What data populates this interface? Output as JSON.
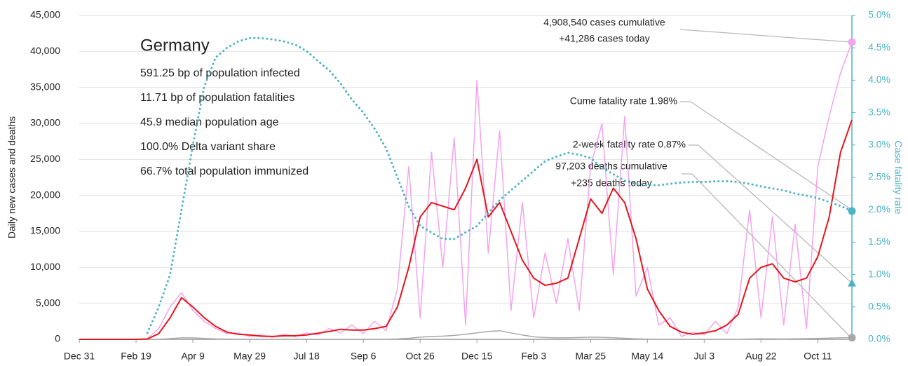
{
  "chart_data": {
    "type": "line",
    "info_title": "Germany",
    "info_lines": [
      "591.25 bp of population infected",
      "11.71 bp of population fatalities",
      "45.9 median population age",
      "100.0% Delta variant share",
      "66.7% total population immunized"
    ],
    "ylabel": "Daily new cases and deaths",
    "y2label": "Case fatality rate",
    "annotations": [
      "4,908,540 cases cumulative",
      "+41,286 cases today",
      "Cume fatality rate 1.98%",
      "2-week fatality rate 0.87%",
      "97,203 deaths cumulative",
      "+235 deaths today"
    ],
    "two_week_fatality_rate": 0.87,
    "categories": [
      "Dec 31",
      null,
      null,
      null,
      null,
      "Feb 19",
      null,
      null,
      null,
      null,
      "Apr 9",
      null,
      null,
      null,
      null,
      "May 29",
      null,
      null,
      null,
      null,
      "Jul 18",
      null,
      null,
      null,
      null,
      "Sep 6",
      null,
      null,
      null,
      null,
      "Oct 26",
      null,
      null,
      null,
      null,
      "Dec 15",
      null,
      null,
      null,
      null,
      "Feb 3",
      null,
      null,
      null,
      null,
      "Mar 25",
      null,
      null,
      null,
      null,
      "May 14",
      null,
      null,
      null,
      null,
      "Jul 3",
      null,
      null,
      null,
      null,
      "Aug 22",
      null,
      null,
      null,
      null,
      "Oct 11",
      null,
      null,
      null
    ],
    "series": [
      {
        "color": "#f4a3ee",
        "width": 1.5,
        "dotted": false,
        "values": [
          0,
          0,
          0,
          0,
          0,
          0,
          100,
          1500,
          4500,
          6500,
          4000,
          2500,
          1500,
          800,
          900,
          400,
          600,
          300,
          700,
          400,
          900,
          600,
          1500,
          900,
          2000,
          800,
          2500,
          1200,
          7000,
          24000,
          3000,
          26000,
          10000,
          28000,
          2000,
          36000,
          12000,
          29000,
          4000,
          19000,
          3000,
          12000,
          5000,
          14000,
          4000,
          24000,
          30000,
          9000,
          31000,
          6000,
          10000,
          2000,
          3000,
          400,
          1000,
          600,
          2500,
          800,
          4500,
          18000,
          3000,
          17000,
          2000,
          16000,
          1500,
          24000,
          31000,
          37000,
          41286
        ]
      },
      {
        "color": "#a8a8a8",
        "width": 1.5,
        "dotted": false,
        "values": [
          0,
          0,
          0,
          0,
          0,
          0,
          0,
          20,
          100,
          200,
          200,
          120,
          60,
          40,
          20,
          10,
          10,
          5,
          5,
          5,
          5,
          5,
          10,
          10,
          10,
          10,
          15,
          30,
          60,
          150,
          300,
          400,
          450,
          550,
          700,
          900,
          1100,
          1200,
          900,
          600,
          350,
          250,
          200,
          220,
          250,
          300,
          280,
          220,
          150,
          80,
          40,
          20,
          15,
          10,
          10,
          10,
          15,
          20,
          30,
          50,
          80,
          60,
          50,
          70,
          100,
          130,
          180,
          220,
          235
        ]
      },
      {
        "color": "#e8141c",
        "width": 2,
        "dotted": false,
        "values": [
          0,
          0,
          0,
          0,
          0,
          0,
          50,
          800,
          3000,
          5800,
          4500,
          3000,
          1800,
          1000,
          700,
          600,
          450,
          400,
          500,
          500,
          600,
          850,
          1100,
          1400,
          1300,
          1300,
          1500,
          1800,
          4500,
          10000,
          17000,
          19000,
          18500,
          18000,
          21000,
          25000,
          17000,
          19000,
          15000,
          11000,
          8500,
          7500,
          7800,
          8500,
          14000,
          19500,
          17500,
          21000,
          19000,
          14000,
          7000,
          4000,
          1800,
          1000,
          700,
          900,
          1200,
          2000,
          3500,
          8500,
          10000,
          10500,
          8500,
          8000,
          8500,
          11500,
          17000,
          26000,
          30500
        ]
      },
      {
        "color": "#4bb3c6",
        "width": 3,
        "dotted": true,
        "axis": "y2",
        "values": [
          null,
          null,
          null,
          null,
          null,
          null,
          0.1,
          0.5,
          1.0,
          2.0,
          3.0,
          3.9,
          4.35,
          4.5,
          4.6,
          4.65,
          4.65,
          4.63,
          4.6,
          4.55,
          4.45,
          4.3,
          4.15,
          3.95,
          3.7,
          3.5,
          3.25,
          2.95,
          2.5,
          2.05,
          1.75,
          1.65,
          1.55,
          1.55,
          1.65,
          1.75,
          1.95,
          2.15,
          2.3,
          2.45,
          2.6,
          2.75,
          2.82,
          2.88,
          2.85,
          2.8,
          2.65,
          2.55,
          2.45,
          2.4,
          2.38,
          2.38,
          2.4,
          2.42,
          2.43,
          2.43,
          2.44,
          2.44,
          2.43,
          2.4,
          2.36,
          2.33,
          2.3,
          2.25,
          2.22,
          2.18,
          2.12,
          2.06,
          1.98
        ]
      }
    ],
    "ylim": [
      0,
      45000
    ],
    "yticks": [
      0,
      {
        "value": 5000,
        "label": "5,000"
      },
      {
        "value": 10000,
        "label": "10,000"
      },
      {
        "value": 15000,
        "label": "15,000"
      },
      {
        "value": 20000,
        "label": "20,000"
      },
      {
        "value": 25000,
        "label": "25,000"
      },
      {
        "value": 30000,
        "label": "30,000"
      },
      {
        "value": 35000,
        "label": "35,000"
      },
      {
        "value": 40000,
        "label": "40,000"
      },
      {
        "value": 45000,
        "label": "45,000"
      }
    ],
    "y2lim": [
      0,
      5
    ],
    "y2ticks": [
      {
        "value": 0,
        "label": "0.0%"
      },
      {
        "value": 0.5,
        "label": "0.5%"
      },
      {
        "value": 1,
        "label": "1.0%"
      },
      {
        "value": 1.5,
        "label": "1.5%"
      },
      {
        "value": 2,
        "label": "2.0%"
      },
      {
        "value": 2.5,
        "label": "2.5%"
      },
      {
        "value": 3,
        "label": "3.0%"
      },
      {
        "value": 3.5,
        "label": "3.5%"
      },
      {
        "value": 4,
        "label": "4.0%"
      },
      {
        "value": 4.5,
        "label": "4.5%"
      },
      {
        "value": 5,
        "label": "5.0%"
      }
    ],
    "y2color": "#4bb3c6",
    "grid": true
  }
}
